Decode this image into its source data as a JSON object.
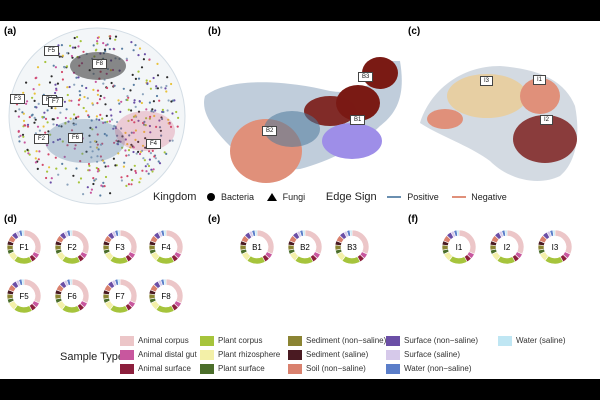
{
  "panels": {
    "a": "(a)",
    "b": "(b)",
    "c": "(c)",
    "d": "(d)",
    "e": "(e)",
    "f": "(f)"
  },
  "network_labels": {
    "a": [
      "F5",
      "F3",
      "F1",
      "F7",
      "F2",
      "F6",
      "F8",
      "F4"
    ],
    "b": [
      "B3",
      "B2",
      "B1"
    ],
    "c": [
      "I3",
      "I1",
      "I2"
    ]
  },
  "legend": {
    "kingdom_title": "Kingdom",
    "bacteria": "Bacteria",
    "fungi": "Fungi",
    "edge_title": "Edge Sign",
    "positive": "Positive",
    "negative": "Negative",
    "positive_color": "#6a8fb0",
    "negative_color": "#e0907a"
  },
  "donuts": {
    "d": [
      "F1",
      "F2",
      "F3",
      "F4",
      "F5",
      "F6",
      "F7",
      "F8"
    ],
    "e": [
      "B1",
      "B2",
      "B3"
    ],
    "f": [
      "I1",
      "I2",
      "I3"
    ]
  },
  "sample_type": {
    "title": "Sample Type",
    "items": [
      {
        "label": "Animal corpus",
        "color": "#ecc6c8"
      },
      {
        "label": "Animal distal gut",
        "color": "#c8579e"
      },
      {
        "label": "Animal surface",
        "color": "#8c1f3c"
      },
      {
        "label": "Plant corpus",
        "color": "#a6c43c"
      },
      {
        "label": "Plant rhizosphere",
        "color": "#f3f0a8"
      },
      {
        "label": "Plant surface",
        "color": "#4b6e2a"
      },
      {
        "label": "Sediment (non−saline)",
        "color": "#8b8433"
      },
      {
        "label": "Sediment (saline)",
        "color": "#4a1a22"
      },
      {
        "label": "Soil (non−saline)",
        "color": "#d9816e"
      },
      {
        "label": "Surface (non−saline)",
        "color": "#6b4fa6"
      },
      {
        "label": "Surface (saline)",
        "color": "#d6c9ea"
      },
      {
        "label": "Water (non−saline)",
        "color": "#5b7ec9"
      },
      {
        "label": "Water (saline)",
        "color": "#bfe6f3"
      }
    ]
  }
}
